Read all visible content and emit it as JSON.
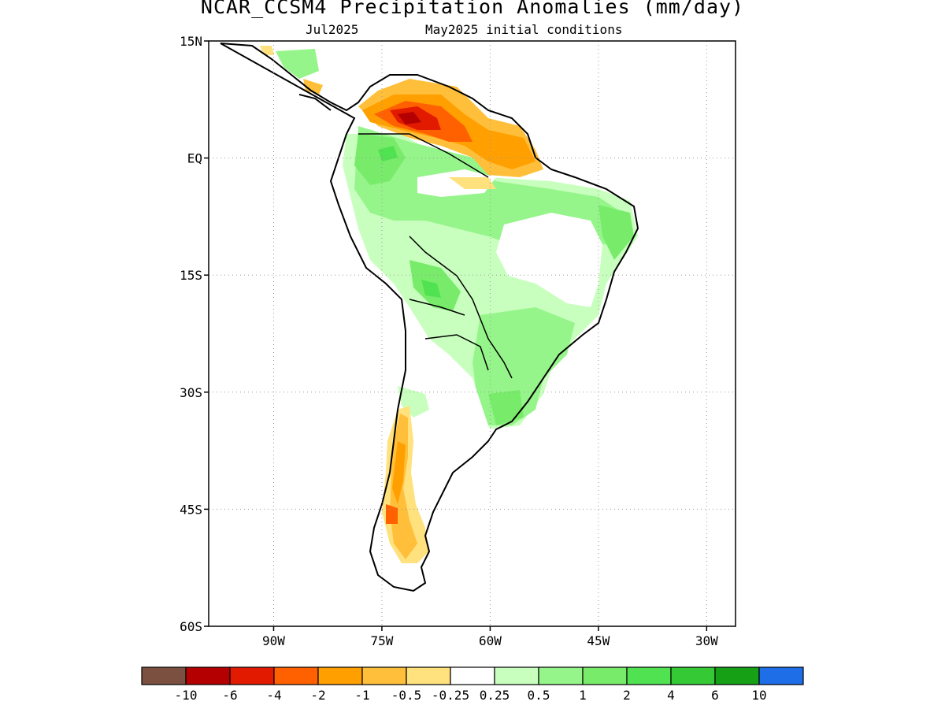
{
  "title": "NCAR_CCSM4 Precipitation Anomalies (mm/day)",
  "subtitle_left": "Jul2025",
  "subtitle_right": "May2025 initial conditions",
  "map": {
    "lat_range": [
      -60,
      15
    ],
    "lon_range": [
      -99,
      -26
    ],
    "lat_ticks": [
      {
        "value": 15,
        "label": "15N"
      },
      {
        "value": 0,
        "label": "EQ"
      },
      {
        "value": -15,
        "label": "15S"
      },
      {
        "value": -30,
        "label": "30S"
      },
      {
        "value": -45,
        "label": "45S"
      },
      {
        "value": -60,
        "label": "60S"
      }
    ],
    "lon_ticks": [
      {
        "value": -90,
        "label": "90W"
      },
      {
        "value": -75,
        "label": "75W"
      },
      {
        "value": -60,
        "label": "60W"
      },
      {
        "value": -45,
        "label": "45W"
      },
      {
        "value": -30,
        "label": "30W"
      }
    ],
    "grid": "dotted"
  },
  "colorbar": {
    "colors": [
      "#7b5040",
      "#b40000",
      "#e11a00",
      "#ff6000",
      "#ff9f00",
      "#ffbf3a",
      "#ffe17d",
      "#ffffff",
      "#c8ffbe",
      "#96f58a",
      "#78ec6a",
      "#50e250",
      "#35c935",
      "#15a015",
      "#1e6ee8"
    ],
    "labels": [
      "-10",
      "-6",
      "-4",
      "-2",
      "-1",
      "-0.5",
      "-0.25",
      "0.25",
      "0.5",
      "1",
      "2",
      "4",
      "6",
      "10"
    ]
  }
}
